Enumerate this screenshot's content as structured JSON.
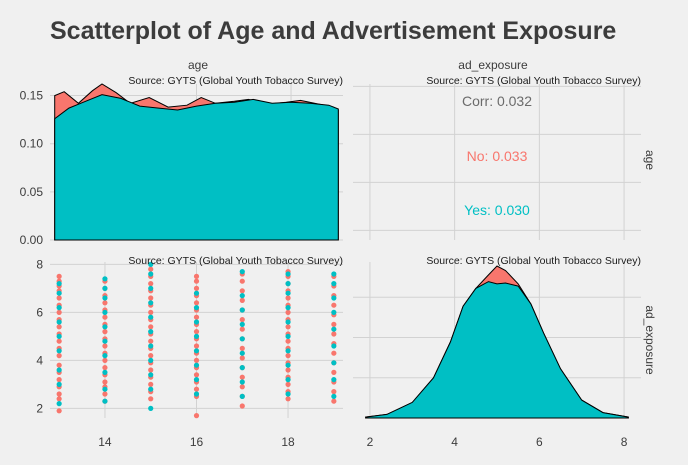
{
  "chart_data": {
    "type": "scatter",
    "title": "Scatterplot of Age and Advertisement Exposure",
    "variables": [
      "age",
      "ad_exposure"
    ],
    "caption": "Source: GYTS (Global Youth Tobacco Survey)",
    "colors": {
      "No": "#f8766d",
      "Yes": "#00bfc4"
    },
    "correlation": {
      "overall_label": "Corr: 0.032",
      "groups": [
        {
          "name": "No",
          "label": "No: 0.033"
        },
        {
          "name": "Yes",
          "label": "Yes: 0.030"
        }
      ]
    },
    "age_density": {
      "xlim": [
        12.9,
        19.1
      ],
      "ylim": [
        0,
        0.162
      ],
      "yticks": [
        0.0,
        0.05,
        0.1,
        0.15
      ],
      "yticklabels": [
        "0.00",
        "0.05",
        "0.10",
        "0.15"
      ],
      "No": [
        [
          13.0,
          0.15
        ],
        [
          13.2,
          0.154
        ],
        [
          13.5,
          0.142
        ],
        [
          13.8,
          0.155
        ],
        [
          14.0,
          0.162
        ],
        [
          14.3,
          0.153
        ],
        [
          14.6,
          0.142
        ],
        [
          15.0,
          0.148
        ],
        [
          15.4,
          0.138
        ],
        [
          15.8,
          0.14
        ],
        [
          16.1,
          0.148
        ],
        [
          16.4,
          0.142
        ],
        [
          16.8,
          0.144
        ],
        [
          17.1,
          0.146
        ],
        [
          17.5,
          0.141
        ],
        [
          17.9,
          0.143
        ],
        [
          18.2,
          0.145
        ],
        [
          18.6,
          0.141
        ],
        [
          18.9,
          0.138
        ],
        [
          19.0,
          0.135
        ]
      ],
      "Yes": [
        [
          13.0,
          0.126
        ],
        [
          13.3,
          0.137
        ],
        [
          13.6,
          0.143
        ],
        [
          14.0,
          0.151
        ],
        [
          14.4,
          0.147
        ],
        [
          14.8,
          0.139
        ],
        [
          15.2,
          0.137
        ],
        [
          15.6,
          0.135
        ],
        [
          16.0,
          0.139
        ],
        [
          16.4,
          0.142
        ],
        [
          16.8,
          0.143
        ],
        [
          17.2,
          0.146
        ],
        [
          17.6,
          0.142
        ],
        [
          18.0,
          0.143
        ],
        [
          18.4,
          0.142
        ],
        [
          18.8,
          0.14
        ],
        [
          19.0,
          0.136
        ]
      ]
    },
    "ad_density": {
      "xlim": [
        1.6,
        8.4
      ],
      "ylim": [
        0,
        0.34
      ],
      "xticks": [
        2,
        4,
        6,
        8
      ],
      "xticklabels": [
        "2",
        "4",
        "6",
        "8"
      ],
      "Yes": [
        [
          1.9,
          0.002
        ],
        [
          2.4,
          0.008
        ],
        [
          3.0,
          0.035
        ],
        [
          3.5,
          0.09
        ],
        [
          3.9,
          0.17
        ],
        [
          4.2,
          0.25
        ],
        [
          4.5,
          0.29
        ],
        [
          4.8,
          0.305
        ],
        [
          5.0,
          0.3
        ],
        [
          5.2,
          0.302
        ],
        [
          5.5,
          0.295
        ],
        [
          5.8,
          0.255
        ],
        [
          6.1,
          0.19
        ],
        [
          6.5,
          0.11
        ],
        [
          7.0,
          0.04
        ],
        [
          7.5,
          0.012
        ],
        [
          8.1,
          0.002
        ]
      ],
      "No": [
        [
          1.9,
          0.002
        ],
        [
          2.4,
          0.008
        ],
        [
          3.0,
          0.035
        ],
        [
          3.5,
          0.09
        ],
        [
          3.9,
          0.17
        ],
        [
          4.2,
          0.25
        ],
        [
          4.5,
          0.29
        ],
        [
          4.8,
          0.32
        ],
        [
          5.0,
          0.34
        ],
        [
          5.2,
          0.33
        ],
        [
          5.5,
          0.3
        ],
        [
          5.8,
          0.255
        ],
        [
          6.1,
          0.19
        ],
        [
          6.5,
          0.11
        ],
        [
          7.0,
          0.04
        ],
        [
          7.5,
          0.012
        ],
        [
          8.1,
          0.002
        ]
      ]
    },
    "scatter": {
      "xlim": [
        12.8,
        19.2
      ],
      "ylim": [
        1.6,
        8.1
      ],
      "xticks": [
        14,
        16,
        18
      ],
      "xticklabels": [
        "14",
        "16",
        "18"
      ],
      "yticks": [
        2,
        4,
        6,
        8
      ],
      "yticklabels": [
        "2",
        "4",
        "6",
        "8"
      ],
      "columns": [
        {
          "age": 13,
          "No": [
            1.9,
            2.4,
            2.6,
            2.9,
            3.2,
            3.5,
            3.8,
            4.2,
            4.5,
            4.8,
            5.1,
            5.4,
            5.7,
            6.0,
            6.3,
            6.6,
            6.9,
            7.1,
            7.3,
            7.5
          ],
          "Yes": [
            2.2,
            3.0,
            3.6,
            4.4,
            5.0,
            5.6,
            6.2,
            6.8,
            7.2
          ]
        },
        {
          "age": 14,
          "No": [
            2.3,
            2.6,
            2.9,
            3.1,
            3.4,
            3.7,
            4.0,
            4.3,
            4.6,
            4.9,
            5.2,
            5.5,
            5.8,
            6.1,
            6.4,
            6.7,
            7.0,
            7.3
          ],
          "Yes": [
            2.3,
            2.8,
            3.5,
            4.2,
            4.8,
            5.4,
            6.0,
            6.6,
            7.0,
            7.4
          ]
        },
        {
          "age": 15,
          "No": [
            2.4,
            2.7,
            3.0,
            3.3,
            3.6,
            3.9,
            4.2,
            4.5,
            4.8,
            5.1,
            5.4,
            5.7,
            6.0,
            6.3,
            6.6,
            6.9,
            7.2,
            7.5,
            7.8
          ],
          "Yes": [
            2.0,
            2.8,
            3.4,
            4.0,
            4.6,
            5.2,
            5.8,
            6.4,
            7.0,
            7.6,
            8.0
          ]
        },
        {
          "age": 16,
          "No": [
            1.7,
            2.5,
            2.8,
            3.1,
            3.4,
            3.7,
            4.0,
            4.3,
            4.6,
            4.9,
            5.2,
            5.5,
            5.8,
            6.1,
            6.4,
            6.7,
            7.0,
            7.3,
            7.5
          ],
          "Yes": [
            2.6,
            3.2,
            3.8,
            4.4,
            5.0,
            5.6,
            6.2,
            6.8
          ]
        },
        {
          "age": 17,
          "No": [
            2.1,
            2.5,
            2.9,
            3.3,
            3.7,
            4.1,
            4.5,
            4.9,
            5.3,
            5.7,
            6.1,
            6.5,
            6.9,
            7.3,
            7.6
          ],
          "Yes": [
            2.5,
            3.1,
            3.7,
            4.3,
            4.9,
            5.5,
            6.1,
            6.7,
            7.7
          ]
        },
        {
          "age": 18,
          "No": [
            2.4,
            2.7,
            3.0,
            3.3,
            3.6,
            3.9,
            4.2,
            4.5,
            4.8,
            5.1,
            5.4,
            5.7,
            6.0,
            6.3,
            6.6,
            6.9,
            7.2,
            7.5,
            7.7
          ],
          "Yes": [
            2.6,
            3.2,
            3.8,
            4.4,
            5.0,
            5.6,
            6.2,
            6.8,
            7.2,
            7.6
          ]
        },
        {
          "age": 19,
          "No": [
            2.3,
            2.7,
            3.1,
            3.5,
            3.9,
            4.3,
            4.7,
            5.1,
            5.5,
            5.9,
            6.3,
            6.7,
            7.1,
            7.5
          ],
          "Yes": [
            2.5,
            3.2,
            3.9,
            4.6,
            5.3,
            6.0,
            6.6,
            7.2,
            7.6
          ]
        }
      ]
    }
  }
}
